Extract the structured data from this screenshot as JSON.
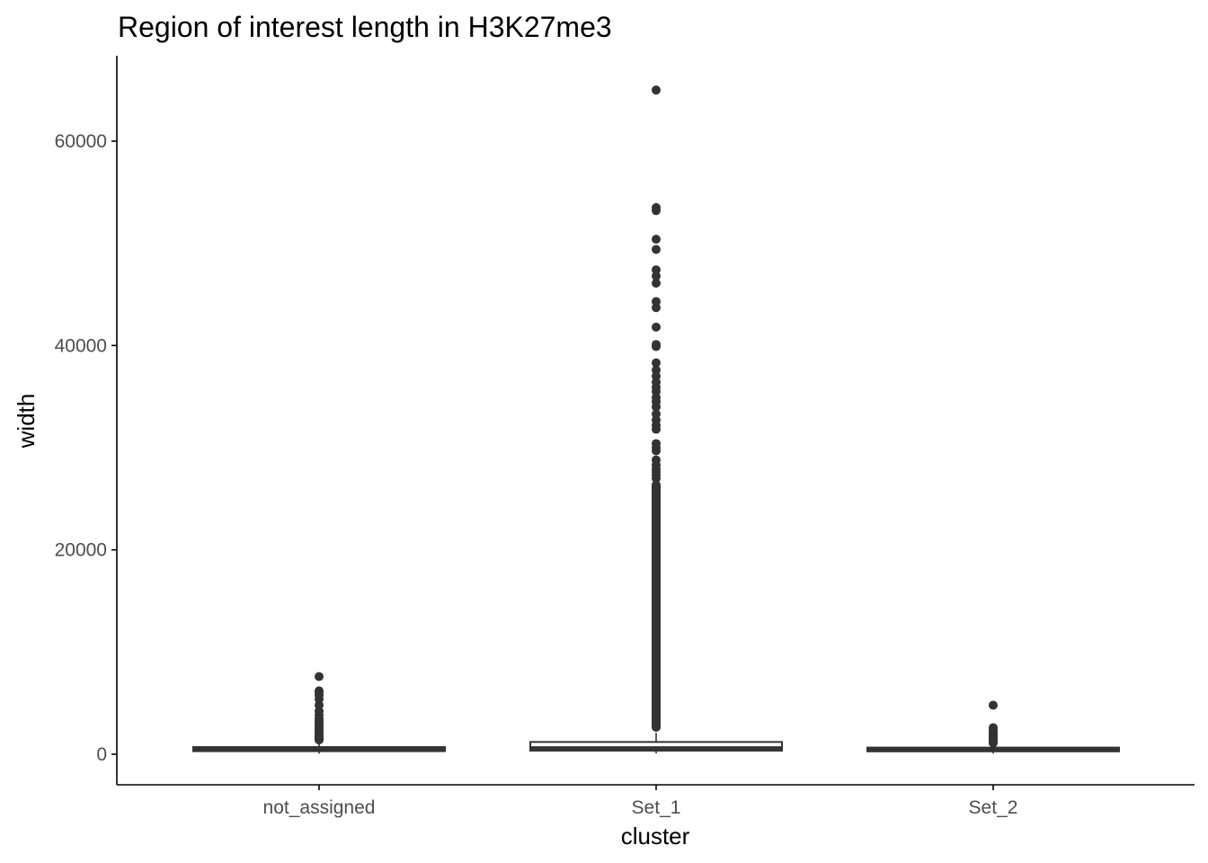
{
  "chart_data": {
    "type": "box",
    "title": "Region of interest length in H3K27me3",
    "xlabel": "cluster",
    "ylabel": "width",
    "categories": [
      "not_assigned",
      "Set_1",
      "Set_2"
    ],
    "ylim": [
      -3000,
      68500
    ],
    "yticks": [
      0,
      20000,
      40000,
      60000
    ],
    "ytick_labels": [
      "0",
      "20000",
      "40000",
      "60000"
    ],
    "grid": false,
    "legend": "none",
    "colors": {
      "box": "#333333",
      "outlier": "#333333",
      "axis": "#000000",
      "tick_label": "#4d4d4d"
    },
    "series": [
      {
        "category": "not_assigned",
        "min": 60,
        "q1": 300,
        "median": 450,
        "q3": 700,
        "max": 1300,
        "outliers": [
          7600,
          6200,
          6000,
          5800,
          5400,
          4800,
          4200,
          3800,
          3500,
          3300,
          3100,
          2900,
          2700,
          2500,
          2300,
          2100,
          1900,
          1800,
          1700,
          1600,
          1500,
          1400
        ]
      },
      {
        "category": "Set_1",
        "min": 80,
        "q1": 350,
        "median": 600,
        "q3": 1200,
        "max": 2100,
        "outliers": [
          65000,
          53500,
          53200,
          50400,
          49400,
          47400,
          46800,
          46100,
          44300,
          43700,
          41800,
          40100,
          39900,
          38300,
          37600,
          37000,
          36400,
          35900,
          35500,
          34900,
          34500,
          34000,
          33300,
          32700,
          32200,
          31800,
          30400,
          30000,
          29700,
          28800,
          28300,
          27900,
          27600,
          27300,
          27000
        ],
        "outlier_band": [
          2200,
          26800
        ]
      },
      {
        "category": "Set_2",
        "min": 60,
        "q1": 280,
        "median": 420,
        "q3": 650,
        "max": 1050,
        "outliers": [
          4800,
          2600,
          2400,
          2200,
          2000,
          1900,
          1800,
          1700,
          1600,
          1500,
          1400,
          1300,
          1200,
          1100
        ]
      }
    ]
  }
}
